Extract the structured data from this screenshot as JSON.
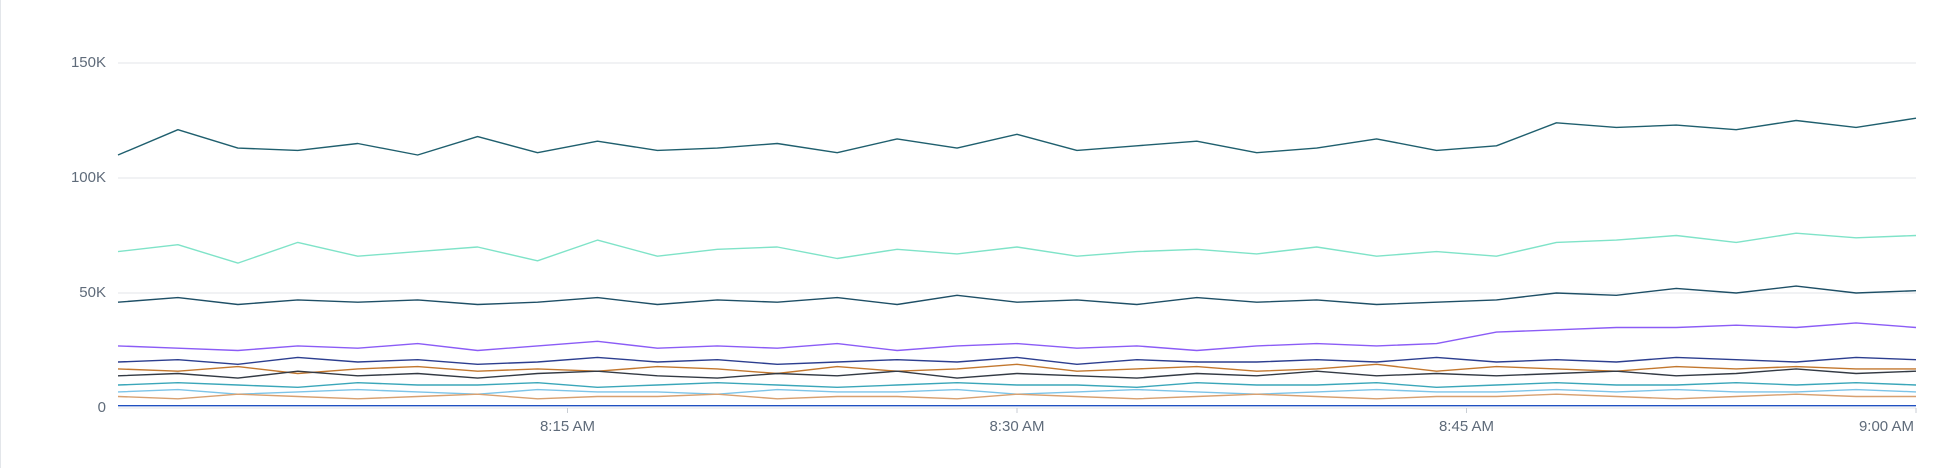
{
  "chart_data": {
    "type": "line",
    "x": [
      "8:00",
      "8:02",
      "8:04",
      "8:06",
      "8:08",
      "8:10",
      "8:12",
      "8:14",
      "8:16",
      "8:18",
      "8:20",
      "8:22",
      "8:24",
      "8:26",
      "8:28",
      "8:30",
      "8:32",
      "8:34",
      "8:36",
      "8:38",
      "8:40",
      "8:42",
      "8:44",
      "8:46",
      "8:48",
      "8:50",
      "8:52",
      "8:54",
      "8:56",
      "8:58",
      "9:00"
    ],
    "xlim": [
      "8:00",
      "9:00"
    ],
    "xticks": [
      {
        "value": "8:15",
        "label": "8:15 AM"
      },
      {
        "value": "8:30",
        "label": "8:30 AM"
      },
      {
        "value": "8:45",
        "label": "8:45 AM"
      },
      {
        "value": "9:00",
        "label": "9:00 AM"
      }
    ],
    "ylim": [
      0,
      160000
    ],
    "yticks": [
      {
        "value": 0,
        "label": "0"
      },
      {
        "value": 50000,
        "label": "50K"
      },
      {
        "value": 100000,
        "label": "100K"
      },
      {
        "value": 150000,
        "label": "150K"
      }
    ],
    "grid": true,
    "series": [
      {
        "color": "#1f5f6e",
        "values": [
          110000,
          121000,
          113000,
          112000,
          115000,
          110000,
          118000,
          111000,
          116000,
          112000,
          113000,
          115000,
          111000,
          117000,
          113000,
          119000,
          112000,
          114000,
          116000,
          111000,
          113000,
          117000,
          112000,
          114000,
          124000,
          122000,
          123000,
          121000,
          125000,
          122000,
          126000
        ]
      },
      {
        "color": "#7fe3c8",
        "values": [
          68000,
          71000,
          63000,
          72000,
          66000,
          68000,
          70000,
          64000,
          73000,
          66000,
          69000,
          70000,
          65000,
          69000,
          67000,
          70000,
          66000,
          68000,
          69000,
          67000,
          70000,
          66000,
          68000,
          66000,
          72000,
          73000,
          75000,
          72000,
          76000,
          74000,
          75000
        ]
      },
      {
        "color": "#1e4f66",
        "values": [
          46000,
          48000,
          45000,
          47000,
          46000,
          47000,
          45000,
          46000,
          48000,
          45000,
          47000,
          46000,
          48000,
          45000,
          49000,
          46000,
          47000,
          45000,
          48000,
          46000,
          47000,
          45000,
          46000,
          47000,
          50000,
          49000,
          52000,
          50000,
          53000,
          50000,
          51000
        ]
      },
      {
        "color": "#8b5cf6",
        "values": [
          27000,
          26000,
          25000,
          27000,
          26000,
          28000,
          25000,
          27000,
          29000,
          26000,
          27000,
          26000,
          28000,
          25000,
          27000,
          28000,
          26000,
          27000,
          25000,
          27000,
          28000,
          27000,
          28000,
          33000,
          34000,
          35000,
          35000,
          36000,
          35000,
          37000,
          35000
        ]
      },
      {
        "color": "#2c3e8f",
        "values": [
          20000,
          21000,
          19000,
          22000,
          20000,
          21000,
          19000,
          20000,
          22000,
          20000,
          21000,
          19000,
          20000,
          21000,
          20000,
          22000,
          19000,
          21000,
          20000,
          20000,
          21000,
          20000,
          22000,
          20000,
          21000,
          20000,
          22000,
          21000,
          20000,
          22000,
          21000
        ]
      },
      {
        "color": "#c2772e",
        "values": [
          17000,
          16000,
          18000,
          15000,
          17000,
          18000,
          16000,
          17000,
          16000,
          18000,
          17000,
          15000,
          18000,
          16000,
          17000,
          19000,
          16000,
          17000,
          18000,
          16000,
          17000,
          19000,
          16000,
          18000,
          17000,
          16000,
          18000,
          17000,
          18000,
          17000,
          17000
        ]
      },
      {
        "color": "#333a44",
        "values": [
          14000,
          15000,
          13000,
          16000,
          14000,
          15000,
          13000,
          15000,
          16000,
          14000,
          13000,
          15000,
          14000,
          16000,
          13000,
          15000,
          14000,
          13000,
          15000,
          14000,
          16000,
          14000,
          15000,
          14000,
          15000,
          16000,
          14000,
          15000,
          17000,
          15000,
          16000
        ]
      },
      {
        "color": "#3aa6b9",
        "values": [
          10000,
          11000,
          10000,
          9000,
          11000,
          10000,
          10000,
          11000,
          9000,
          10000,
          11000,
          10000,
          9000,
          10000,
          11000,
          10000,
          10000,
          9000,
          11000,
          10000,
          10000,
          11000,
          9000,
          10000,
          11000,
          10000,
          10000,
          11000,
          10000,
          11000,
          10000
        ]
      },
      {
        "color": "#7cc4e8",
        "values": [
          7000,
          8000,
          6000,
          7000,
          8000,
          7000,
          6000,
          8000,
          7000,
          7000,
          6000,
          8000,
          7000,
          7000,
          8000,
          6000,
          7000,
          8000,
          7000,
          6000,
          7000,
          8000,
          7000,
          7000,
          8000,
          7000,
          8000,
          7000,
          7000,
          8000,
          7000
        ]
      },
      {
        "color": "#d8a070",
        "values": [
          5000,
          4000,
          6000,
          5000,
          4000,
          5000,
          6000,
          4000,
          5000,
          5000,
          6000,
          4000,
          5000,
          5000,
          4000,
          6000,
          5000,
          4000,
          5000,
          6000,
          5000,
          4000,
          5000,
          5000,
          6000,
          5000,
          4000,
          5000,
          6000,
          5000,
          5000
        ]
      },
      {
        "color": "#2050c0",
        "values": [
          1000,
          1000,
          1000,
          1000,
          1000,
          1000,
          1000,
          1000,
          1000,
          1000,
          1000,
          1000,
          1000,
          1000,
          1000,
          1000,
          1000,
          1000,
          1000,
          1000,
          1000,
          1000,
          1000,
          1000,
          1000,
          1000,
          1000,
          1000,
          1000,
          1000,
          1000
        ]
      }
    ]
  }
}
